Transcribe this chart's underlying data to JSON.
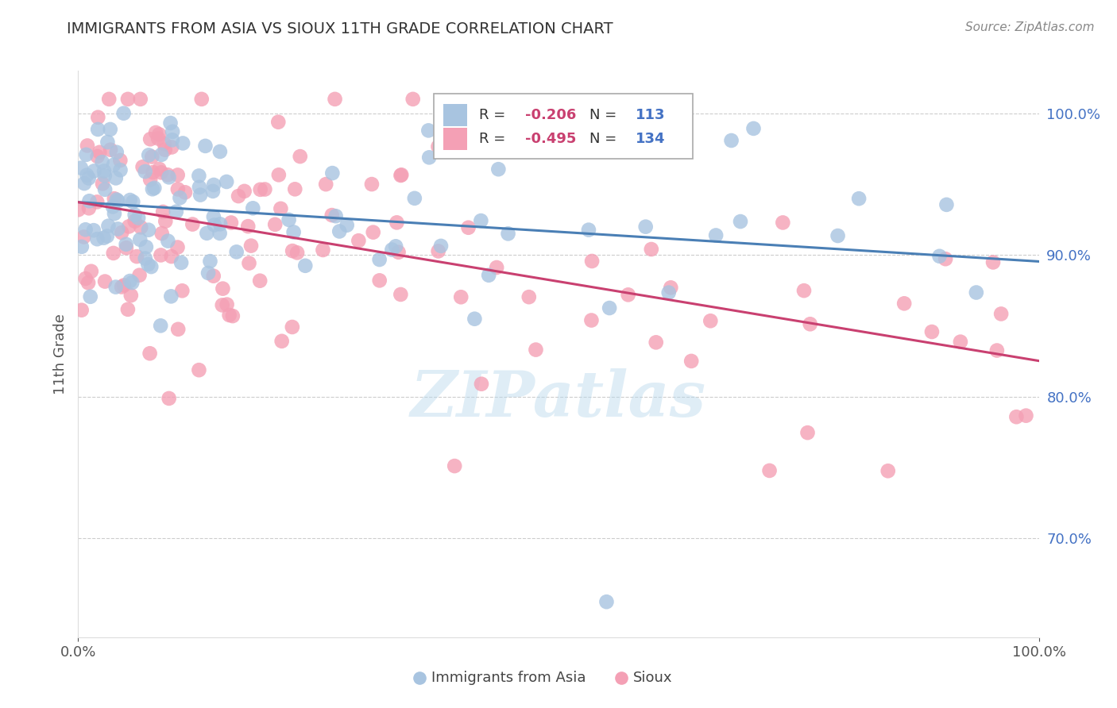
{
  "title": "IMMIGRANTS FROM ASIA VS SIOUX 11TH GRADE CORRELATION CHART",
  "source": "Source: ZipAtlas.com",
  "ylabel": "11th Grade",
  "xmin": 0.0,
  "xmax": 100.0,
  "ymin": 63.0,
  "ymax": 103.0,
  "yticks": [
    70.0,
    80.0,
    90.0,
    100.0
  ],
  "ytick_labels": [
    "70.0%",
    "80.0%",
    "90.0%",
    "100.0%"
  ],
  "legend_r1": "-0.206",
  "legend_n1": "113",
  "legend_r2": "-0.495",
  "legend_n2": "134",
  "color_blue": "#a8c4e0",
  "color_pink": "#f4a0b5",
  "line_color_blue": "#4a7fb5",
  "line_color_pink": "#c94070",
  "watermark": "ZIPatlas",
  "title_color": "#333333",
  "tick_color": "#4472c4",
  "legend_r_color": "#c94070",
  "legend_n_color": "#4472c4"
}
